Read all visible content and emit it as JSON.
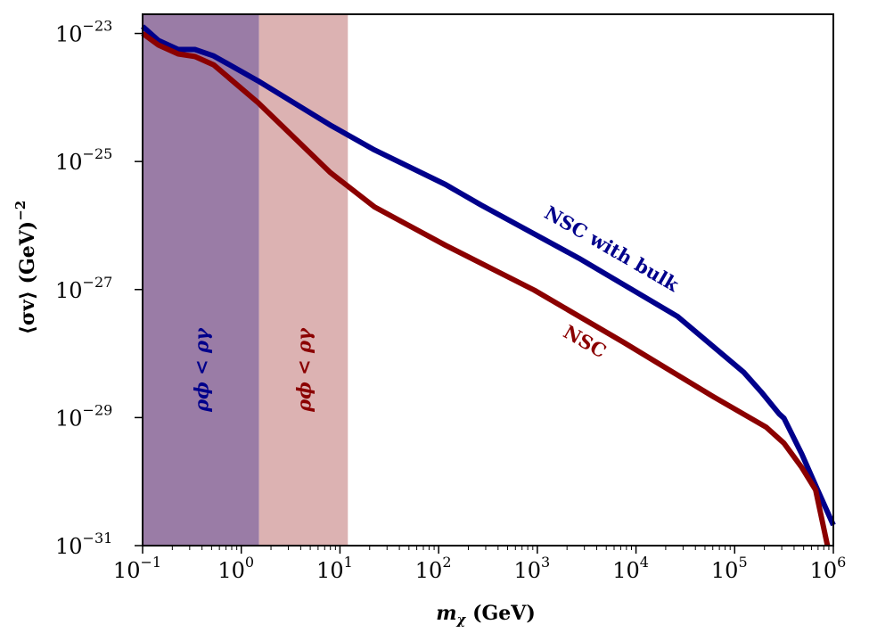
{
  "chart_data": {
    "type": "line",
    "title": "",
    "xlabel": "m_χ (GeV)",
    "ylabel": "⟨σv⟩ (GeV)^−2",
    "xscale": "log",
    "yscale": "log",
    "xlim": [
      0.1,
      1000000
    ],
    "ylim_log10": [
      -31,
      -22.7
    ],
    "x_ticks": [
      {
        "base": "10",
        "exp": "−1",
        "value": -1
      },
      {
        "base": "10",
        "exp": "0",
        "value": 0
      },
      {
        "base": "10",
        "exp": "1",
        "value": 1
      },
      {
        "base": "10",
        "exp": "2",
        "value": 2
      },
      {
        "base": "10",
        "exp": "3",
        "value": 3
      },
      {
        "base": "10",
        "exp": "4",
        "value": 4
      },
      {
        "base": "10",
        "exp": "5",
        "value": 5
      },
      {
        "base": "10",
        "exp": "6",
        "value": 6
      }
    ],
    "y_ticks": [
      {
        "base": "10",
        "exp": "−23",
        "value": -23
      },
      {
        "base": "10",
        "exp": "−25",
        "value": -25
      },
      {
        "base": "10",
        "exp": "−27",
        "value": -27
      },
      {
        "base": "10",
        "exp": "−29",
        "value": -29
      },
      {
        "base": "10",
        "exp": "−31",
        "value": -31
      }
    ],
    "grid": false,
    "legend": "none (inline labels)",
    "shaded_regions": [
      {
        "name": "ρ_φ < ρ_γ (NSC with bulk)",
        "x_from_log10": -1,
        "x_to_log10": 0.18,
        "color": "#9a7ca6",
        "label": "ρϕ < ργ",
        "label_color": "#00008b"
      },
      {
        "name": "ρ_φ < ρ_γ (NSC)",
        "x_from_log10": 0.18,
        "x_to_log10": 1.08,
        "color": "#dcb2b2",
        "label": "ρϕ < ργ",
        "label_color": "#8b0000"
      }
    ],
    "series": [
      {
        "name": "NSC with bulk",
        "color": "#00008b",
        "x_log10": [
          -1.0,
          -0.84,
          -0.64,
          -0.47,
          -0.28,
          0.17,
          0.9,
          1.35,
          2.07,
          2.43,
          3.42,
          4.42,
          5.09,
          5.27,
          5.45,
          5.5,
          5.59,
          5.68,
          5.82,
          6.0
        ],
        "y_log10": [
          -22.89,
          -23.11,
          -23.25,
          -23.25,
          -23.35,
          -23.74,
          -24.43,
          -24.82,
          -25.36,
          -25.68,
          -26.51,
          -27.42,
          -28.29,
          -28.6,
          -28.94,
          -29.01,
          -29.29,
          -29.57,
          -30.06,
          -30.68
        ]
      },
      {
        "name": "NSC",
        "color": "#8b0000",
        "x_log10": [
          -1.0,
          -0.84,
          -0.64,
          -0.47,
          -0.28,
          0.17,
          0.9,
          1.35,
          2.07,
          2.97,
          3.88,
          4.78,
          5.32,
          5.5,
          5.68,
          5.82,
          5.94
        ],
        "y_log10": [
          -23.0,
          -23.18,
          -23.32,
          -23.36,
          -23.49,
          -24.08,
          -25.17,
          -25.71,
          -26.31,
          -27.01,
          -27.83,
          -28.67,
          -29.15,
          -29.4,
          -29.78,
          -30.13,
          -31.0
        ]
      }
    ],
    "annotations": [
      {
        "text": "NSC with bulk",
        "color": "#00008b",
        "x_log10": 3.72,
        "y_log10": -26.45,
        "rotation_deg": 30
      },
      {
        "text": "NSC",
        "color": "#8b0000",
        "x_log10": 3.45,
        "y_log10": -27.9,
        "rotation_deg": 30
      }
    ],
    "axis_label_x": {
      "main": "m",
      "sub": "χ",
      "unit": " (GeV)"
    },
    "axis_label_y": {
      "main": "⟨σv⟩ (GeV)",
      "exp": "−2"
    }
  }
}
